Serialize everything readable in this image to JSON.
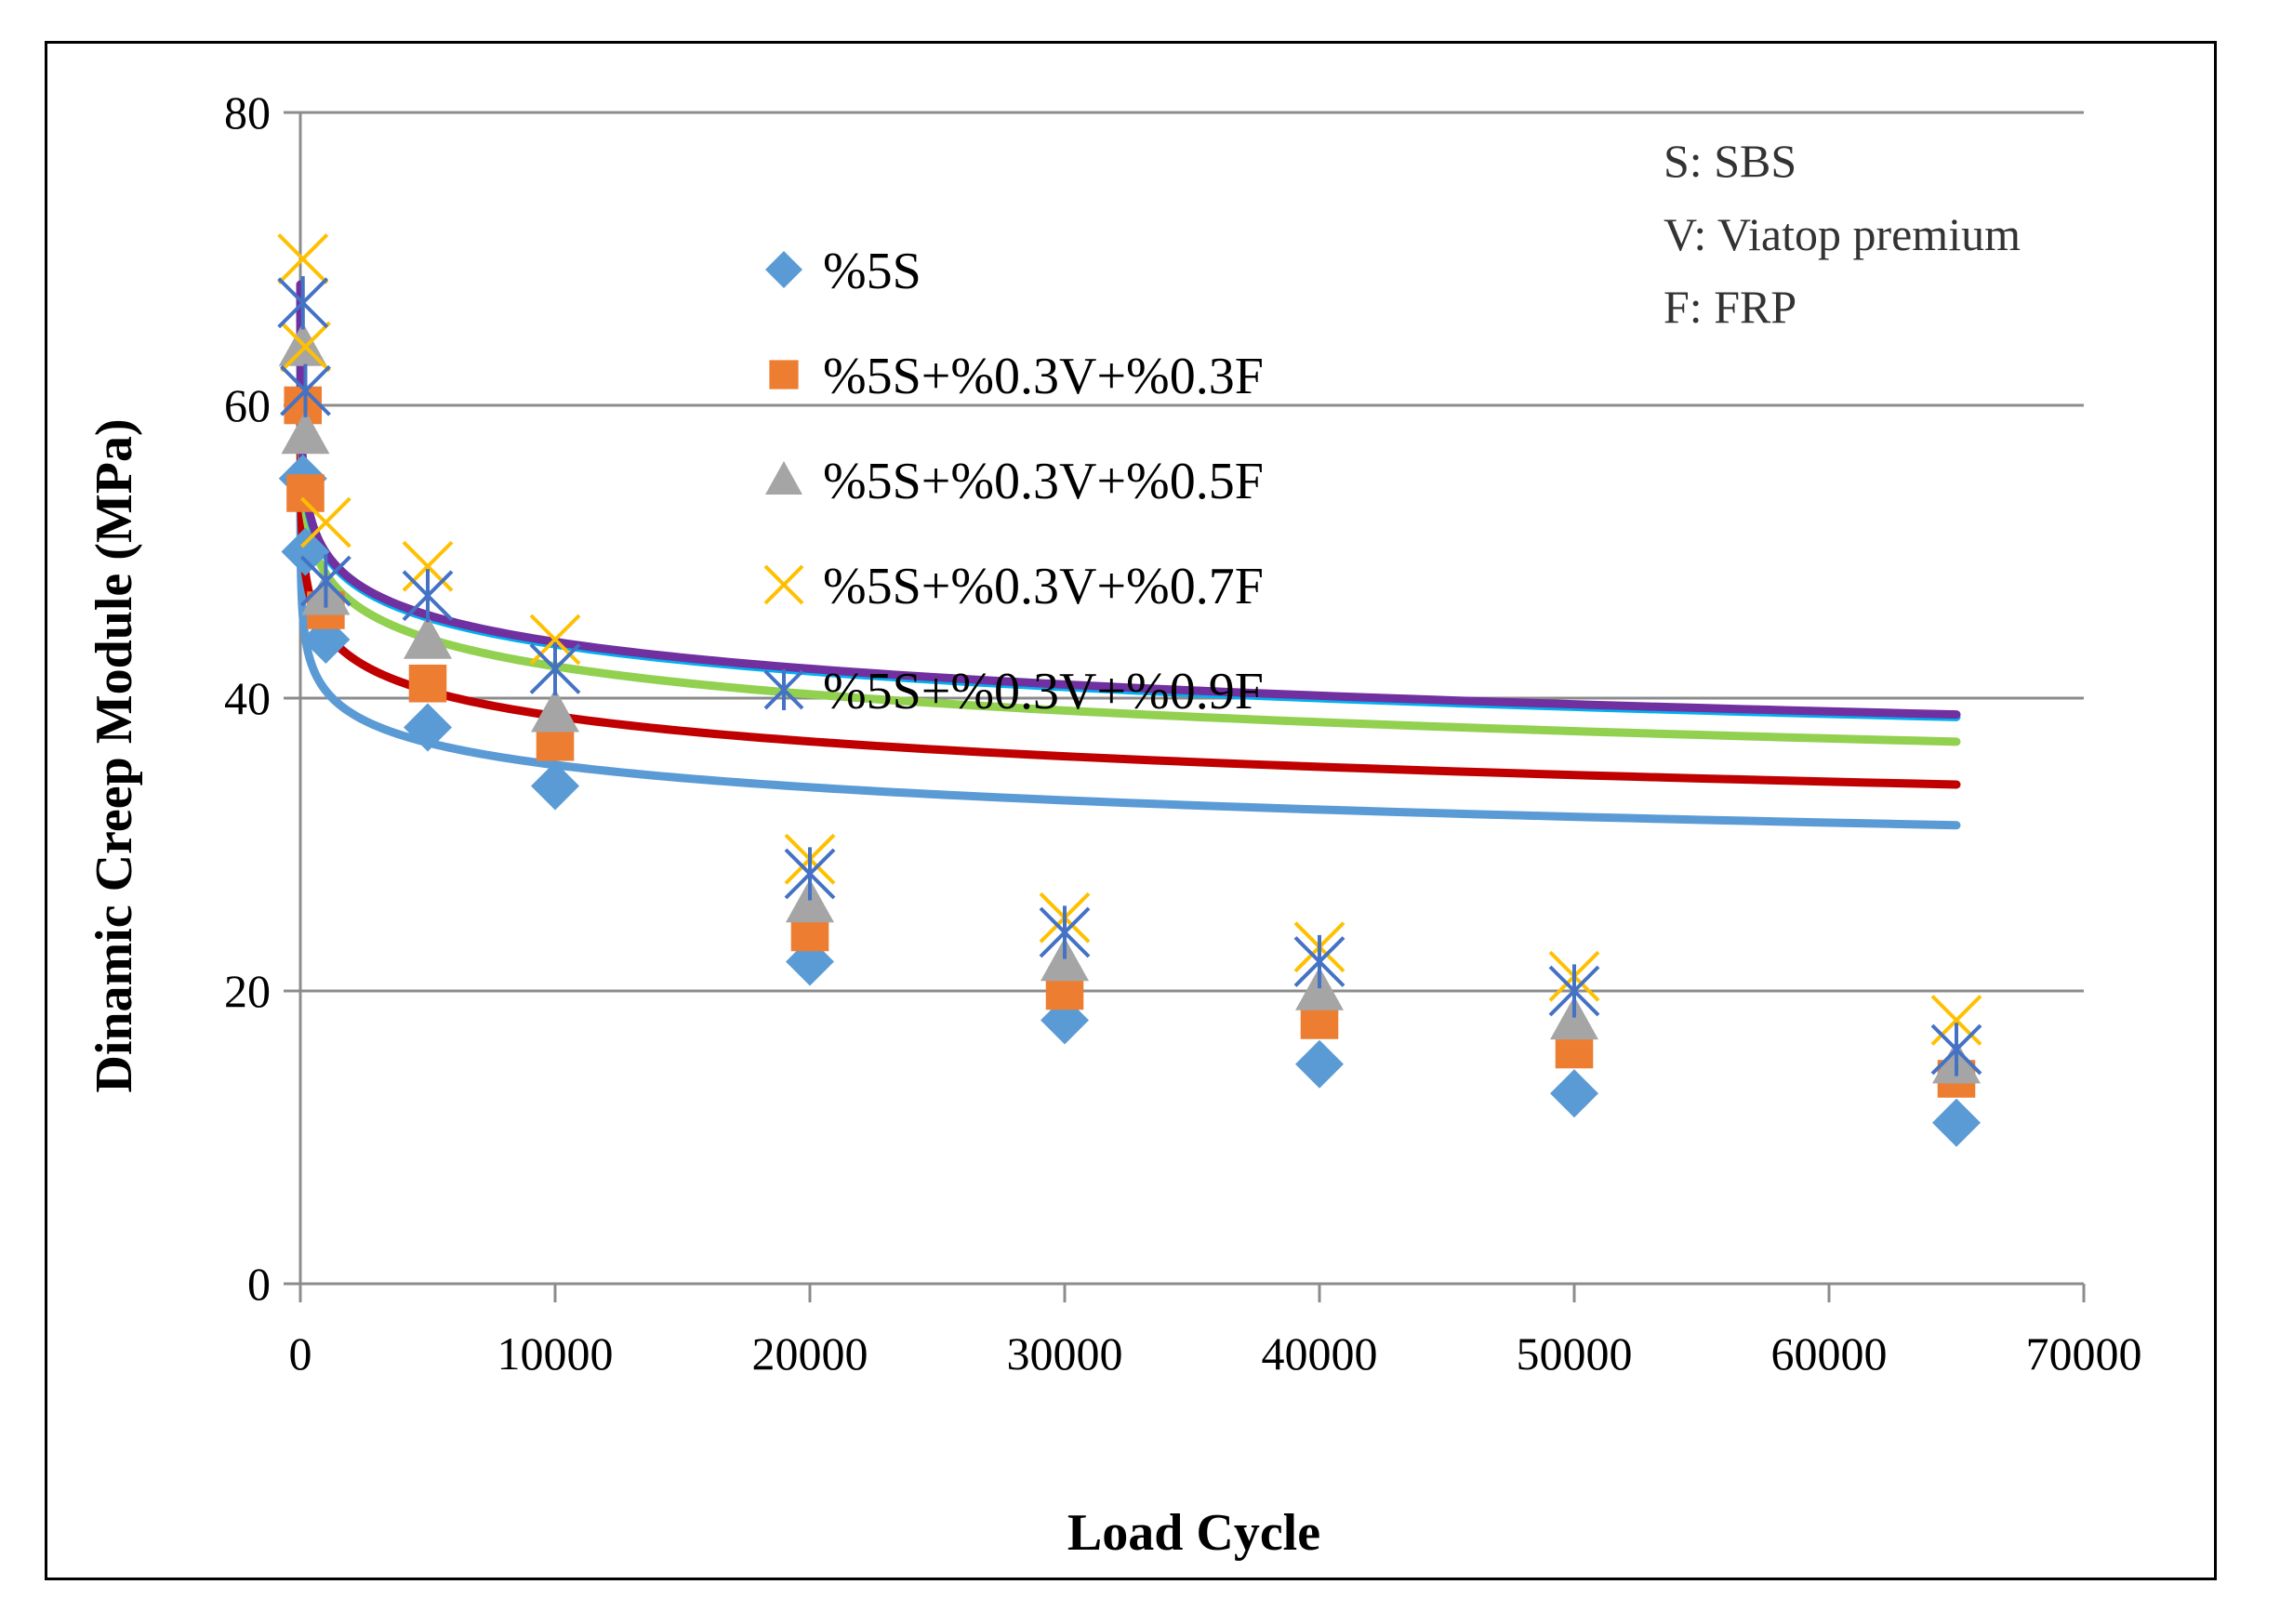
{
  "chart_data": {
    "type": "scatter",
    "xlabel": "Load Cycle",
    "ylabel": "Dinamic Creep Module (MPa)",
    "xlim": [
      0,
      70000
    ],
    "ylim": [
      0,
      80
    ],
    "x_ticks": [
      "0",
      "10000",
      "20000",
      "30000",
      "40000",
      "50000",
      "60000",
      "70000"
    ],
    "y_ticks": [
      "0",
      "20",
      "40",
      "60",
      "80"
    ],
    "grid": "horizontal",
    "legend_position": "top-center",
    "series": [
      {
        "name": "%5S",
        "marker": "diamond",
        "color": "#5B9BD5",
        "points": [
          [
            100,
            55
          ],
          [
            200,
            50
          ],
          [
            1000,
            44
          ],
          [
            5000,
            38
          ],
          [
            10000,
            34
          ],
          [
            20000,
            22
          ],
          [
            30000,
            18
          ],
          [
            40000,
            15
          ],
          [
            50000,
            13
          ],
          [
            65000,
            11
          ]
        ],
        "trend": {
          "color": "#5B9BD5",
          "a": 42.5,
          "b": 2.2,
          "ln_offset": 6.0
        }
      },
      {
        "name": "%5S+%0.3V+%0.3F",
        "marker": "square",
        "color": "#ED7D31",
        "points": [
          [
            100,
            60
          ],
          [
            200,
            54
          ],
          [
            1000,
            46
          ],
          [
            5000,
            41
          ],
          [
            10000,
            37
          ],
          [
            20000,
            24
          ],
          [
            30000,
            20
          ],
          [
            40000,
            18
          ],
          [
            50000,
            16
          ],
          [
            65000,
            14
          ]
        ],
        "trend": {
          "color": "#C00000",
          "a": 46.8,
          "b": 2.5,
          "ln_offset": 6.0
        }
      },
      {
        "name": "%5S+%0.3V+%0.5F",
        "marker": "triangle",
        "color": "#A5A5A5",
        "points": [
          [
            100,
            64
          ],
          [
            200,
            58
          ],
          [
            1000,
            47
          ],
          [
            5000,
            44
          ],
          [
            10000,
            39
          ],
          [
            20000,
            26
          ],
          [
            30000,
            22
          ],
          [
            40000,
            20
          ],
          [
            50000,
            18
          ],
          [
            65000,
            15
          ]
        ],
        "trend": {
          "color": "#92D050",
          "a": 51.0,
          "b": 2.75,
          "ln_offset": 6.0
        }
      },
      {
        "name": "%5S+%0.3V+%0.7F",
        "marker": "x",
        "color": "#FFC000",
        "points": [
          [
            100,
            70
          ],
          [
            200,
            64
          ],
          [
            1000,
            52
          ],
          [
            5000,
            49
          ],
          [
            10000,
            44
          ],
          [
            20000,
            29
          ],
          [
            30000,
            25
          ],
          [
            40000,
            23
          ],
          [
            50000,
            21
          ],
          [
            65000,
            18
          ]
        ],
        "trend": {
          "color": "#00B0F0",
          "a": 53.5,
          "b": 2.65,
          "ln_offset": 5.5
        }
      },
      {
        "name": "%5S+%0.3V+%0.9F",
        "marker": "asterisk",
        "color": "#4472C4",
        "points": [
          [
            100,
            67
          ],
          [
            200,
            61
          ],
          [
            1000,
            48
          ],
          [
            5000,
            47
          ],
          [
            10000,
            42
          ],
          [
            20000,
            28
          ],
          [
            30000,
            24
          ],
          [
            40000,
            22
          ],
          [
            50000,
            20
          ],
          [
            65000,
            16
          ]
        ],
        "trend": {
          "color": "#7030A0",
          "a": 55.0,
          "b": 2.65,
          "ln_offset": 5.0
        }
      }
    ],
    "notes": [
      "S: SBS",
      "V: Viatop premium",
      "F: FRP"
    ]
  }
}
